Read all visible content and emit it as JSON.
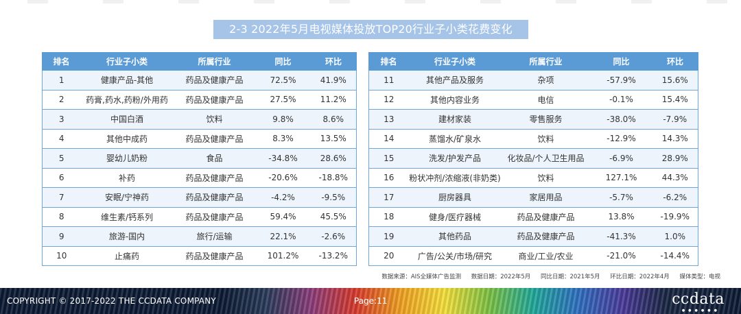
{
  "title": "2-3 2022年5月电视媒体投放TOP20行业子小类花费变化",
  "table_headers": [
    "排名",
    "行业子小类",
    "所属行业",
    "同比",
    "环比"
  ],
  "left_rows": [
    {
      "rank": "1",
      "subcategory": "健康产品-其他",
      "industry": "药品及健康产品",
      "yoy": "72.5%",
      "mom": "41.9%"
    },
    {
      "rank": "2",
      "subcategory": "药膏,药水,药粉/外用药",
      "industry": "药品及健康产品",
      "yoy": "27.5%",
      "mom": "11.2%"
    },
    {
      "rank": "3",
      "subcategory": "中国白酒",
      "industry": "饮料",
      "yoy": "9.8%",
      "mom": "8.6%"
    },
    {
      "rank": "4",
      "subcategory": "其他中成药",
      "industry": "药品及健康产品",
      "yoy": "8.3%",
      "mom": "13.5%"
    },
    {
      "rank": "5",
      "subcategory": "婴幼儿奶粉",
      "industry": "食品",
      "yoy": "-34.8%",
      "mom": "28.6%"
    },
    {
      "rank": "6",
      "subcategory": "补药",
      "industry": "药品及健康产品",
      "yoy": "-20.6%",
      "mom": "-18.8%"
    },
    {
      "rank": "7",
      "subcategory": "安眠/宁神药",
      "industry": "药品及健康产品",
      "yoy": "-4.2%",
      "mom": "-9.5%"
    },
    {
      "rank": "8",
      "subcategory": "维生素/钙系列",
      "industry": "药品及健康产品",
      "yoy": "59.4%",
      "mom": "45.5%"
    },
    {
      "rank": "9",
      "subcategory": "旅游-国内",
      "industry": "旅行/运输",
      "yoy": "22.1%",
      "mom": "-2.6%"
    },
    {
      "rank": "10",
      "subcategory": "止痛药",
      "industry": "药品及健康产品",
      "yoy": "101.2%",
      "mom": "-13.2%"
    }
  ],
  "right_rows": [
    {
      "rank": "11",
      "subcategory": "其他产品及服务",
      "industry": "杂项",
      "yoy": "-57.9%",
      "mom": "15.6%"
    },
    {
      "rank": "12",
      "subcategory": "其他内容业务",
      "industry": "电信",
      "yoy": "-0.1%",
      "mom": "15.4%"
    },
    {
      "rank": "13",
      "subcategory": "建材家装",
      "industry": "零售服务",
      "yoy": "-38.0%",
      "mom": "-7.9%"
    },
    {
      "rank": "14",
      "subcategory": "蒸馏水/矿泉水",
      "industry": "饮料",
      "yoy": "-12.9%",
      "mom": "14.3%"
    },
    {
      "rank": "15",
      "subcategory": "洗发/护发产品",
      "industry": "化妆品/个人卫生用品",
      "yoy": "-6.9%",
      "mom": "28.9%"
    },
    {
      "rank": "16",
      "subcategory": "粉状冲剂/浓缩液(非奶类)",
      "industry": "饮料",
      "yoy": "127.1%",
      "mom": "44.3%"
    },
    {
      "rank": "17",
      "subcategory": "厨房器具",
      "industry": "家居用品",
      "yoy": "-5.7%",
      "mom": "-6.2%"
    },
    {
      "rank": "18",
      "subcategory": "健身/医疗器械",
      "industry": "药品及健康产品",
      "yoy": "13.8%",
      "mom": "-19.9%"
    },
    {
      "rank": "19",
      "subcategory": "其他药品",
      "industry": "药品及健康产品",
      "yoy": "-41.3%",
      "mom": "1.0%"
    },
    {
      "rank": "20",
      "subcategory": "广告/公关/市场/研究",
      "industry": "商业/工业/农业",
      "yoy": "-21.0%",
      "mom": "-14.4%"
    }
  ],
  "source_note": {
    "source": "数据来源：AIS全媒体广告监测",
    "data_date": "数据日期：2022年5月",
    "yoy_date": "同比日期：2021年5月",
    "mom_date": "环比日期：2022年4月",
    "media_type": "媒体类型：电视"
  },
  "footer": {
    "copyright": "COPYRIGHT © 2017-2022 THE CCDATA COMPANY",
    "page": "Page:11",
    "logo": "ccdata"
  },
  "colors": {
    "header_blue": "#5b9bd5",
    "title_banner": "#a5c4e8",
    "row_alt": "#eef4fb"
  }
}
